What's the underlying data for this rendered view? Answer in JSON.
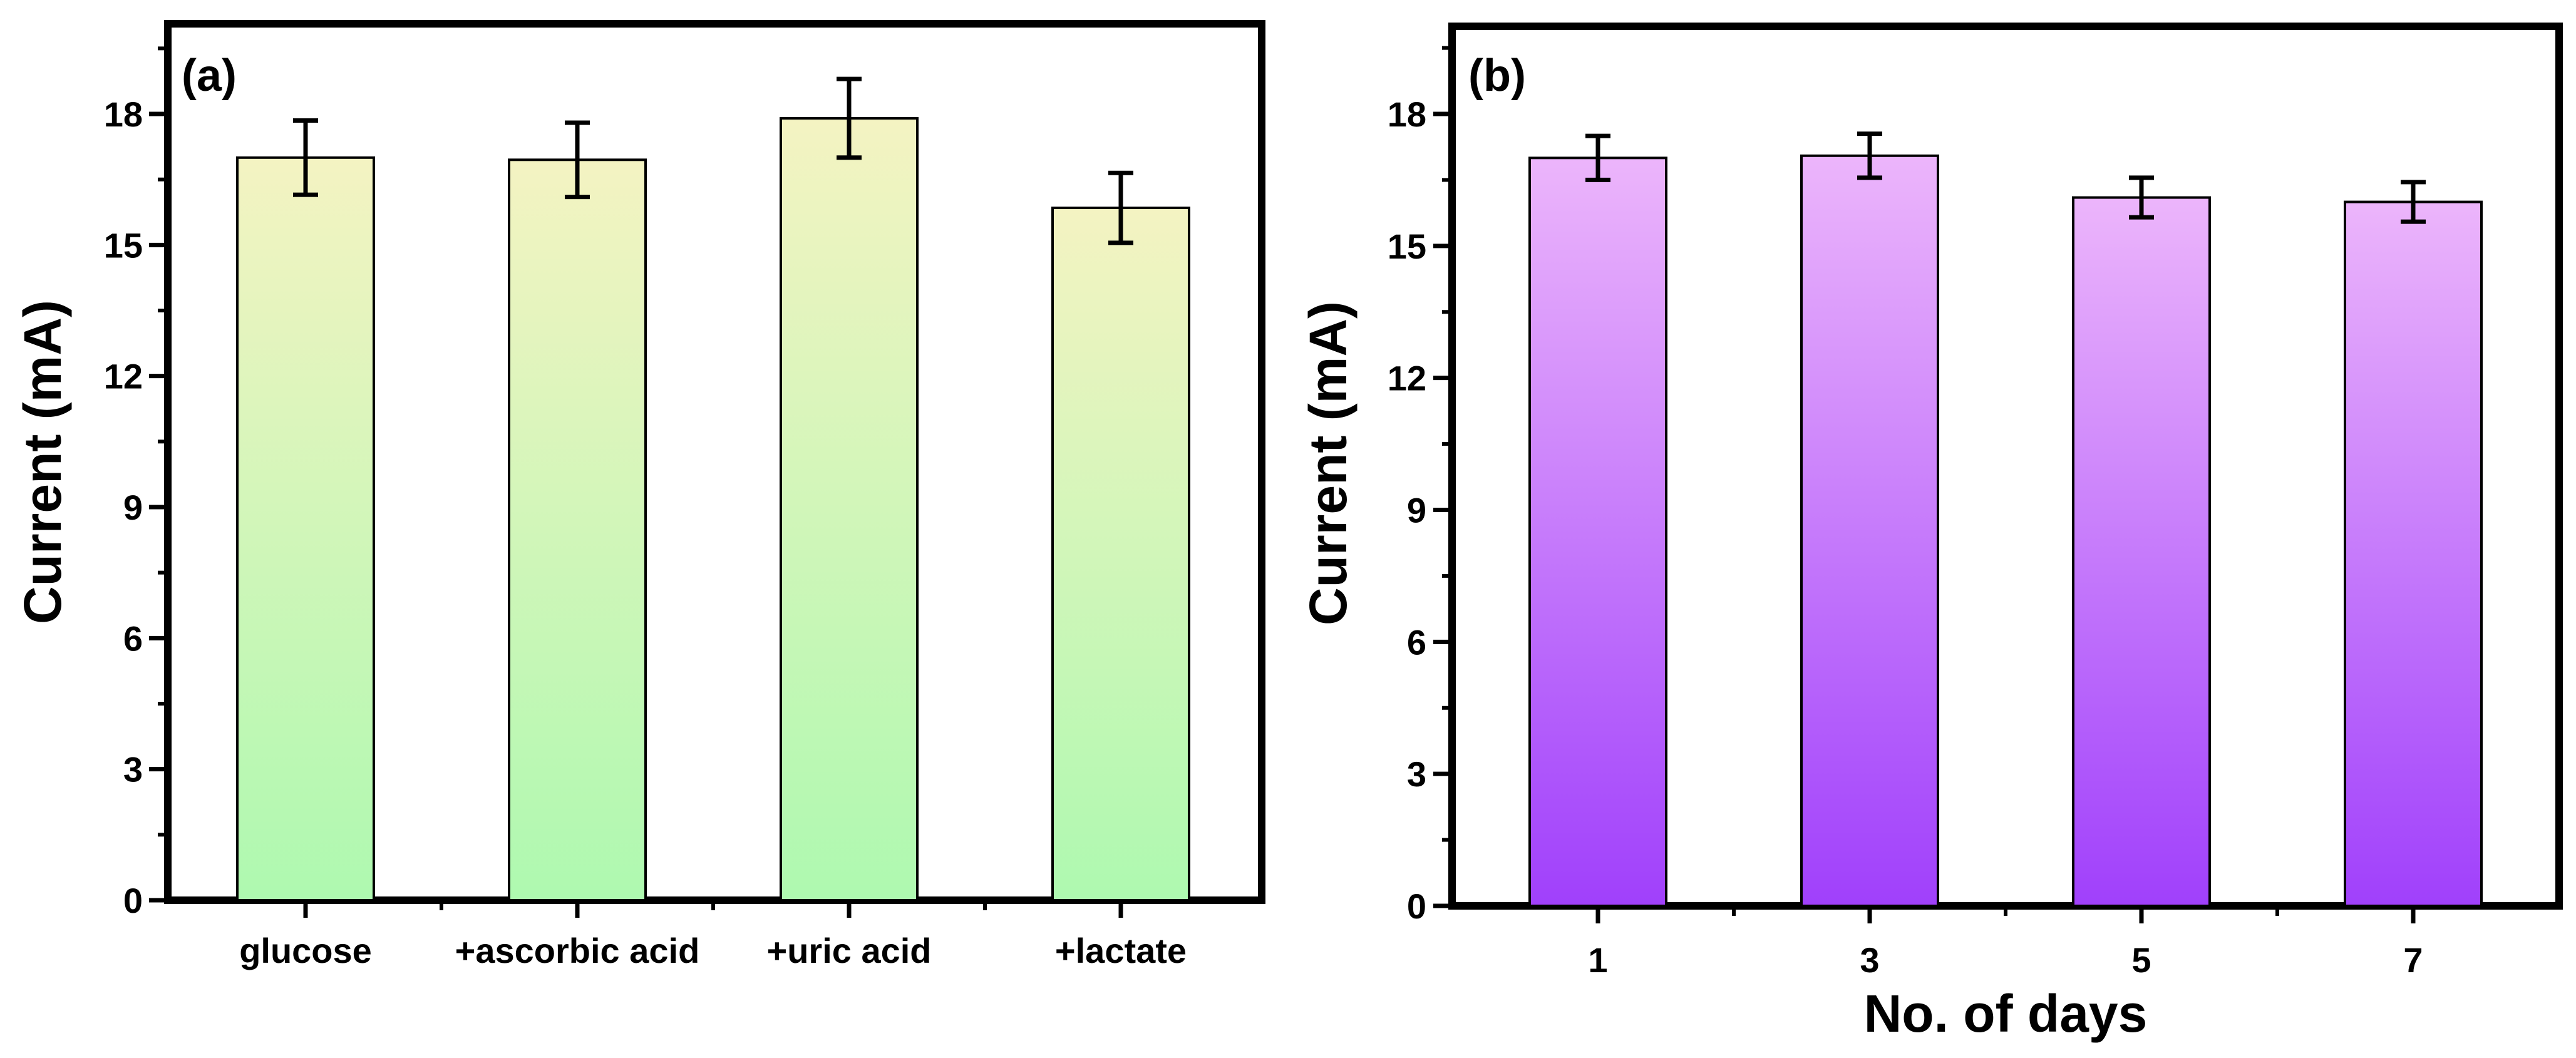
{
  "chart_data": [
    {
      "type": "bar",
      "panel_label": "(a)",
      "title": "",
      "xlabel": "",
      "ylabel": "Current (mA)",
      "ylim": [
        0,
        19.5
      ],
      "yticks": [
        0,
        3,
        6,
        9,
        12,
        15,
        18
      ],
      "categories": [
        "glucose",
        "+ascorbic acid",
        "+uric acid",
        "+lactate"
      ],
      "values": [
        17.0,
        16.95,
        17.9,
        15.85
      ],
      "errors": [
        0.85,
        0.85,
        0.9,
        0.8
      ],
      "gradient_top": "#f4f3c2",
      "gradient_bottom": "#aef9b0"
    },
    {
      "type": "bar",
      "panel_label": "(b)",
      "title": "",
      "xlabel": "No. of days",
      "ylabel": "Current (mA)",
      "ylim": [
        0,
        19.5
      ],
      "yticks": [
        0,
        3,
        6,
        9,
        12,
        15,
        18
      ],
      "categories": [
        "1",
        "3",
        "5",
        "7"
      ],
      "values": [
        17.0,
        17.05,
        16.1,
        16.0
      ],
      "errors": [
        0.5,
        0.5,
        0.45,
        0.45
      ],
      "gradient_top": "#ecb5fb",
      "gradient_bottom": "#a040fb"
    }
  ]
}
